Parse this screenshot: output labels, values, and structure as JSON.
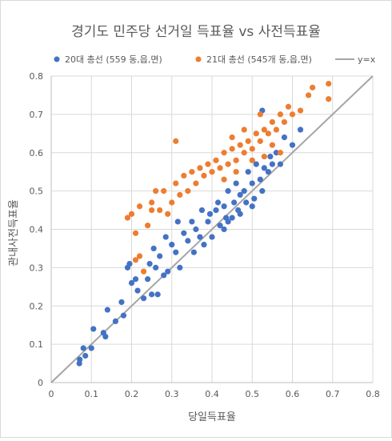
{
  "chart_data": {
    "type": "scatter",
    "title": "경기도 민주당 선거일 득표율 vs 사전득표율",
    "xlabel": "당일득표율",
    "ylabel": "관내사전득표율",
    "xlim": [
      0,
      0.8
    ],
    "ylim": [
      0,
      0.8
    ],
    "x_ticks": [
      "0",
      "0.1",
      "0.2",
      "0.3",
      "0.4",
      "0.5",
      "0.6",
      "0.7",
      "0.8"
    ],
    "y_ticks": [
      "0",
      "0.1",
      "0.2",
      "0.3",
      "0.4",
      "0.5",
      "0.6",
      "0.7",
      "0.8"
    ],
    "grid": true,
    "legend_position": "top",
    "series": [
      {
        "name": "20대 총선 (559 동,읍,면)",
        "color": "#4472C4",
        "points": [
          [
            0.07,
            0.05
          ],
          [
            0.071,
            0.06
          ],
          [
            0.08,
            0.09
          ],
          [
            0.085,
            0.07
          ],
          [
            0.1,
            0.09
          ],
          [
            0.105,
            0.14
          ],
          [
            0.13,
            0.13
          ],
          [
            0.135,
            0.12
          ],
          [
            0.14,
            0.19
          ],
          [
            0.16,
            0.16
          ],
          [
            0.175,
            0.21
          ],
          [
            0.18,
            0.175
          ],
          [
            0.19,
            0.3
          ],
          [
            0.195,
            0.31
          ],
          [
            0.2,
            0.26
          ],
          [
            0.21,
            0.27
          ],
          [
            0.215,
            0.24
          ],
          [
            0.23,
            0.22
          ],
          [
            0.24,
            0.27
          ],
          [
            0.245,
            0.31
          ],
          [
            0.25,
            0.23
          ],
          [
            0.255,
            0.35
          ],
          [
            0.26,
            0.3
          ],
          [
            0.265,
            0.23
          ],
          [
            0.27,
            0.33
          ],
          [
            0.28,
            0.28
          ],
          [
            0.285,
            0.38
          ],
          [
            0.29,
            0.29
          ],
          [
            0.3,
            0.36
          ],
          [
            0.31,
            0.34
          ],
          [
            0.315,
            0.42
          ],
          [
            0.32,
            0.3
          ],
          [
            0.33,
            0.39
          ],
          [
            0.34,
            0.37
          ],
          [
            0.35,
            0.42
          ],
          [
            0.355,
            0.34
          ],
          [
            0.36,
            0.4
          ],
          [
            0.37,
            0.38
          ],
          [
            0.375,
            0.45
          ],
          [
            0.38,
            0.36
          ],
          [
            0.39,
            0.42
          ],
          [
            0.395,
            0.44
          ],
          [
            0.4,
            0.38
          ],
          [
            0.41,
            0.45
          ],
          [
            0.415,
            0.47
          ],
          [
            0.42,
            0.41
          ],
          [
            0.43,
            0.46
          ],
          [
            0.435,
            0.43
          ],
          [
            0.44,
            0.5
          ],
          [
            0.45,
            0.43
          ],
          [
            0.455,
            0.47
          ],
          [
            0.46,
            0.52
          ],
          [
            0.465,
            0.45
          ],
          [
            0.47,
            0.49
          ],
          [
            0.48,
            0.5
          ],
          [
            0.485,
            0.47
          ],
          [
            0.49,
            0.55
          ],
          [
            0.5,
            0.52
          ],
          [
            0.505,
            0.48
          ],
          [
            0.51,
            0.57
          ],
          [
            0.52,
            0.53
          ],
          [
            0.525,
            0.5
          ],
          [
            0.53,
            0.56
          ],
          [
            0.54,
            0.55
          ],
          [
            0.545,
            0.59
          ],
          [
            0.55,
            0.57
          ],
          [
            0.56,
            0.6
          ],
          [
            0.57,
            0.57
          ],
          [
            0.58,
            0.64
          ],
          [
            0.6,
            0.62
          ],
          [
            0.62,
            0.66
          ],
          [
            0.525,
            0.71
          ],
          [
            0.44,
            0.42
          ],
          [
            0.47,
            0.44
          ],
          [
            0.43,
            0.4
          ],
          [
            0.5,
            0.46
          ]
        ]
      },
      {
        "name": "21대 총선 (545개 동,읍,면)",
        "color": "#ED7D31",
        "points": [
          [
            0.21,
            0.32
          ],
          [
            0.22,
            0.33
          ],
          [
            0.23,
            0.29
          ],
          [
            0.19,
            0.43
          ],
          [
            0.2,
            0.44
          ],
          [
            0.21,
            0.39
          ],
          [
            0.22,
            0.46
          ],
          [
            0.24,
            0.41
          ],
          [
            0.25,
            0.47
          ],
          [
            0.26,
            0.5
          ],
          [
            0.27,
            0.45
          ],
          [
            0.28,
            0.5
          ],
          [
            0.3,
            0.47
          ],
          [
            0.31,
            0.52
          ],
          [
            0.32,
            0.49
          ],
          [
            0.33,
            0.54
          ],
          [
            0.34,
            0.5
          ],
          [
            0.35,
            0.55
          ],
          [
            0.36,
            0.52
          ],
          [
            0.37,
            0.56
          ],
          [
            0.38,
            0.54
          ],
          [
            0.39,
            0.57
          ],
          [
            0.4,
            0.55
          ],
          [
            0.41,
            0.58
          ],
          [
            0.42,
            0.56
          ],
          [
            0.43,
            0.6
          ],
          [
            0.44,
            0.57
          ],
          [
            0.45,
            0.61
          ],
          [
            0.46,
            0.58
          ],
          [
            0.47,
            0.62
          ],
          [
            0.48,
            0.6
          ],
          [
            0.49,
            0.63
          ],
          [
            0.5,
            0.61
          ],
          [
            0.51,
            0.65
          ],
          [
            0.52,
            0.63
          ],
          [
            0.53,
            0.66
          ],
          [
            0.54,
            0.65
          ],
          [
            0.55,
            0.68
          ],
          [
            0.56,
            0.66
          ],
          [
            0.57,
            0.7
          ],
          [
            0.58,
            0.68
          ],
          [
            0.59,
            0.72
          ],
          [
            0.6,
            0.7
          ],
          [
            0.62,
            0.71
          ],
          [
            0.64,
            0.75
          ],
          [
            0.65,
            0.77
          ],
          [
            0.69,
            0.78
          ],
          [
            0.69,
            0.74
          ],
          [
            0.31,
            0.63
          ],
          [
            0.25,
            0.45
          ],
          [
            0.29,
            0.44
          ],
          [
            0.43,
            0.53
          ],
          [
            0.46,
            0.55
          ],
          [
            0.5,
            0.58
          ],
          [
            0.53,
            0.59
          ],
          [
            0.55,
            0.62
          ],
          [
            0.57,
            0.6
          ],
          [
            0.45,
            0.64
          ],
          [
            0.48,
            0.66
          ],
          [
            0.52,
            0.7
          ]
        ]
      },
      {
        "name": "y=x",
        "color": "#A5A5A5",
        "points": [
          [
            0,
            0
          ],
          [
            0.8,
            0.8
          ]
        ]
      }
    ]
  }
}
